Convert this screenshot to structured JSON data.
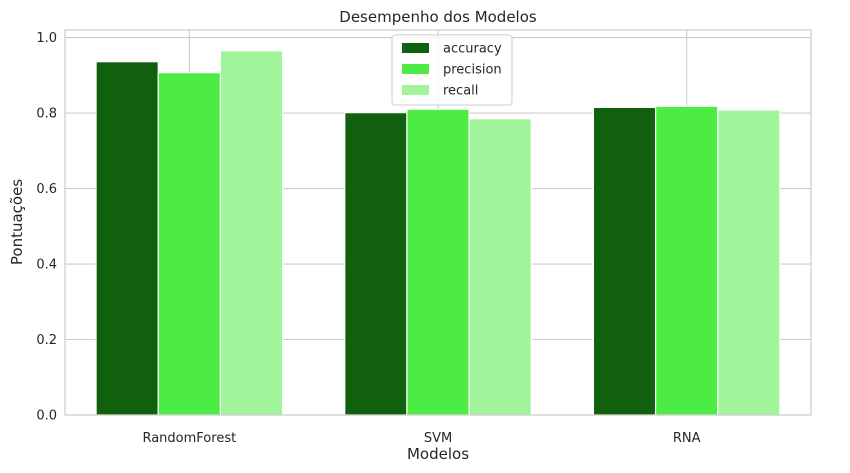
{
  "chart_data": {
    "type": "bar",
    "title": "Desempenho dos Modelos",
    "xlabel": "Modelos",
    "ylabel": "Pontuações",
    "categories": [
      "RandomForest",
      "SVM",
      "RNA"
    ],
    "series": [
      {
        "name": "accuracy",
        "color": "#10600e",
        "values": [
          0.936,
          0.801,
          0.815
        ]
      },
      {
        "name": "precision",
        "color": "#4cec44",
        "values": [
          0.907,
          0.81,
          0.818
        ]
      },
      {
        "name": "recall",
        "color": "#a1f49b",
        "values": [
          0.965,
          0.785,
          0.808
        ]
      }
    ],
    "ylim": [
      0,
      1.02
    ],
    "yticks": [
      "0.0",
      "0.2",
      "0.4",
      "0.6",
      "0.8",
      "1.0"
    ],
    "ytick_values": [
      0,
      0.2,
      0.4,
      0.6,
      0.8,
      1.0
    ],
    "grid": true,
    "legend_position": "top-center"
  }
}
